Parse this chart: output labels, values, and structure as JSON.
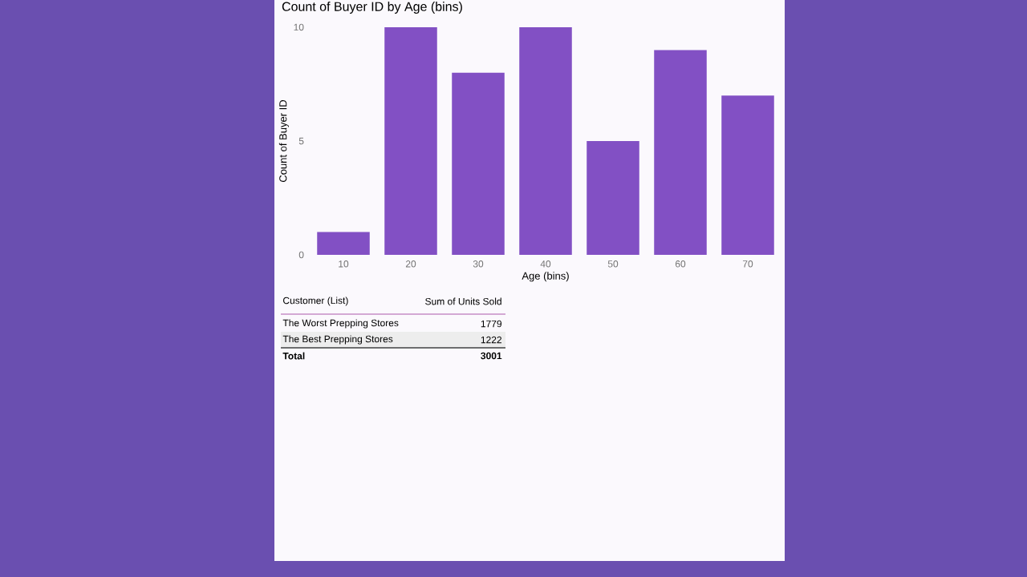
{
  "chart_data": [
    {
      "type": "bar",
      "title": "Count of Buyer ID by Age (bins)",
      "xlabel": "Age (bins)",
      "ylabel": "Count of Buyer ID",
      "categories": [
        "10",
        "20",
        "30",
        "40",
        "50",
        "60",
        "70"
      ],
      "values": [
        1,
        10,
        8,
        10,
        5,
        9,
        7
      ],
      "color": "#8250c4",
      "ylim": [
        0,
        10
      ],
      "yticks": [
        0,
        5,
        10
      ]
    },
    {
      "type": "other",
      "xlabel": "Customer (List)",
      "ylabel": "Sum of Units Sold",
      "categories": [
        "The Worst Prepping Stores",
        "The Best Prepping Stores",
        "Total"
      ],
      "values": [
        1779,
        1222,
        3001
      ],
      "data_labels": true
    }
  ]
}
